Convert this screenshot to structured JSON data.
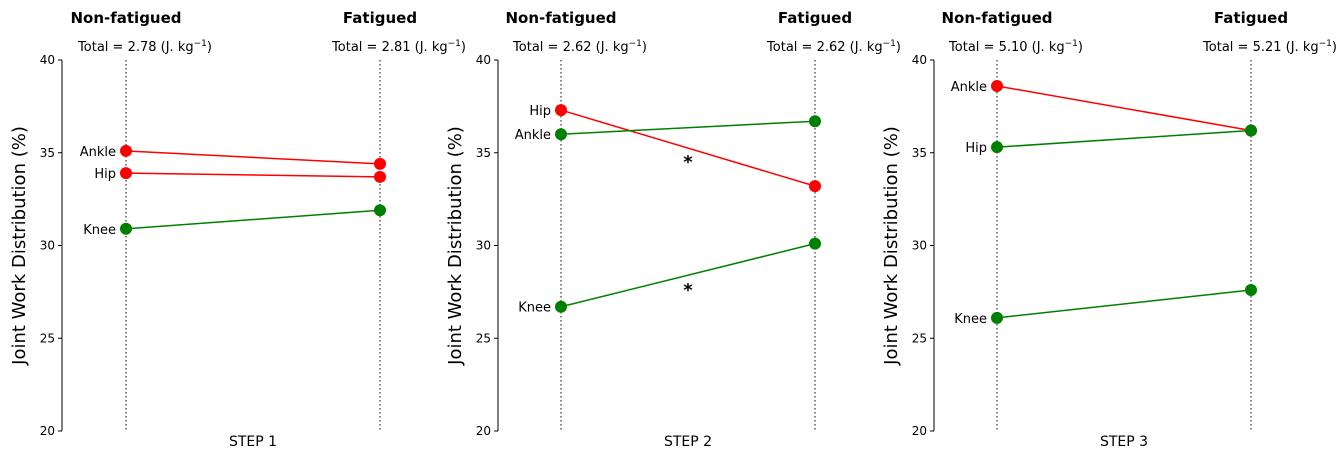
{
  "figure": {
    "ylabel": "Joint Work Distribution (%)",
    "condition_left": "Non-fatigued",
    "condition_right": "Fatigued"
  },
  "chart_data": [
    {
      "type": "line",
      "xlabel": "STEP 1",
      "ylabel": "Joint Work Distribution (%)",
      "categories": [
        "Non-fatigued",
        "Fatigued"
      ],
      "totals": [
        "Total = 2.78 (J. kg",
        "Total = 2.81 (J. kg"
      ],
      "units_exp": "−1",
      "ylim": [
        20,
        40
      ],
      "yticks": [
        20,
        25,
        30,
        35,
        40
      ],
      "series": [
        {
          "name": "Ankle",
          "values": [
            35.1,
            34.4
          ],
          "color": "#ff0000"
        },
        {
          "name": "Hip",
          "values": [
            33.9,
            33.7
          ],
          "color": "#ff0000"
        },
        {
          "name": "Knee",
          "values": [
            30.9,
            31.9
          ],
          "color": "#008000"
        }
      ],
      "annotations": []
    },
    {
      "type": "line",
      "xlabel": "STEP 2",
      "ylabel": "Joint Work Distribution (%)",
      "categories": [
        "Non-fatigued",
        "Fatigued"
      ],
      "totals": [
        "Total = 2.62 (J. kg",
        "Total = 2.62 (J. kg"
      ],
      "units_exp": "−1",
      "ylim": [
        20,
        40
      ],
      "yticks": [
        20,
        25,
        30,
        35,
        40
      ],
      "series": [
        {
          "name": "Hip",
          "values": [
            37.3,
            33.2
          ],
          "color": "#ff0000"
        },
        {
          "name": "Ankle",
          "values": [
            36.0,
            36.7
          ],
          "color": "#008000"
        },
        {
          "name": "Knee",
          "values": [
            26.7,
            30.1
          ],
          "color": "#008000"
        }
      ],
      "annotations": [
        {
          "text": "*",
          "x": 0.5,
          "y": 34.6
        },
        {
          "text": "*",
          "x": 0.5,
          "y": 27.7
        }
      ]
    },
    {
      "type": "line",
      "xlabel": "STEP 3",
      "ylabel": "Joint Work Distribution (%)",
      "categories": [
        "Non-fatigued",
        "Fatigued"
      ],
      "totals": [
        "Total = 5.10 (J. kg",
        "Total = 5.21 (J. kg"
      ],
      "units_exp": "−1",
      "ylim": [
        20,
        40
      ],
      "yticks": [
        20,
        25,
        30,
        35,
        40
      ],
      "series": [
        {
          "name": "Ankle",
          "values": [
            38.6,
            36.2
          ],
          "color": "#ff0000"
        },
        {
          "name": "Hip",
          "values": [
            35.3,
            36.2
          ],
          "color": "#008000"
        },
        {
          "name": "Knee",
          "values": [
            26.1,
            27.6
          ],
          "color": "#008000"
        }
      ],
      "annotations": []
    }
  ]
}
